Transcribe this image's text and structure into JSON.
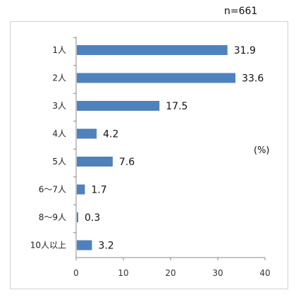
{
  "n_label": "n=661",
  "unit_label": "(%)",
  "chart_data": {
    "type": "bar",
    "orientation": "horizontal",
    "categories": [
      "1人",
      "2人",
      "3人",
      "4人",
      "5人",
      "6～7人",
      "8～9人",
      "10人以上"
    ],
    "values": [
      31.9,
      33.6,
      17.5,
      4.2,
      7.6,
      1.7,
      0.3,
      3.2
    ],
    "value_labels": [
      "31.9",
      "33.6",
      "17.5",
      "4.2",
      "7.6",
      "1.7",
      "0.3",
      "3.2"
    ],
    "xlim": [
      0,
      40
    ],
    "x_ticks": [
      0,
      10,
      20,
      30,
      40
    ],
    "bar_color": "#4f81bd",
    "grid": false
  }
}
